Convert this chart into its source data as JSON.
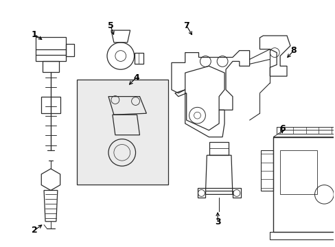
{
  "bg_color": "#ffffff",
  "line_color": "#2a2a2a",
  "label_color": "#000000",
  "label_fontsize": 9,
  "fig_width": 4.89,
  "fig_height": 3.6,
  "dpi": 100
}
